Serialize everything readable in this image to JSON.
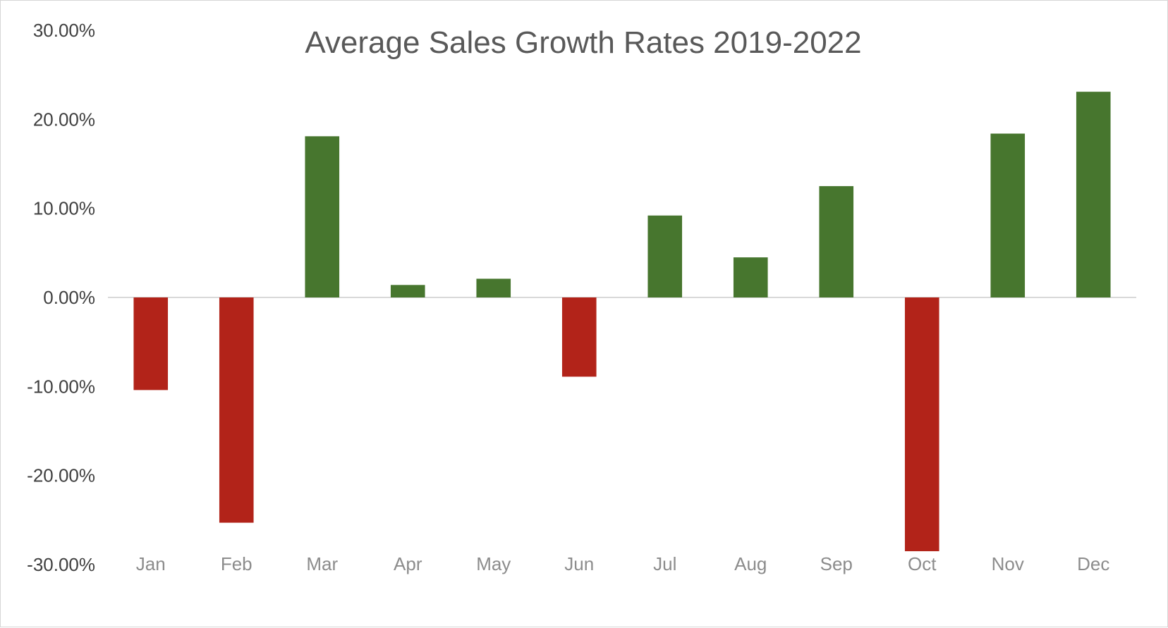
{
  "chart_data": {
    "type": "bar",
    "title": "Average Sales Growth Rates 2019-2022",
    "xlabel": "",
    "ylabel": "",
    "categories": [
      "Jan",
      "Feb",
      "Mar",
      "Apr",
      "May",
      "Jun",
      "Jul",
      "Aug",
      "Sep",
      "Oct",
      "Nov",
      "Dec"
    ],
    "values": [
      -0.104,
      -0.253,
      0.181,
      0.014,
      0.021,
      -0.089,
      0.092,
      0.045,
      0.125,
      -0.285,
      0.184,
      0.231
    ],
    "ylim": [
      -0.3,
      0.3
    ],
    "yticks": [
      0.3,
      0.2,
      0.1,
      0.0,
      -0.1,
      -0.2,
      -0.3
    ],
    "ytick_labels": [
      "30.00%",
      "20.00%",
      "10.00%",
      "0.00%",
      "-10.00%",
      "-20.00%",
      "-30.00%"
    ],
    "grid": false,
    "legend": "none",
    "colors": {
      "positive": "#47762e",
      "negative": "#b22319",
      "zero_line": "#d9d9d9",
      "title": "#595959",
      "y_tick": "#404040",
      "x_tick": "#8c8c8c"
    }
  }
}
